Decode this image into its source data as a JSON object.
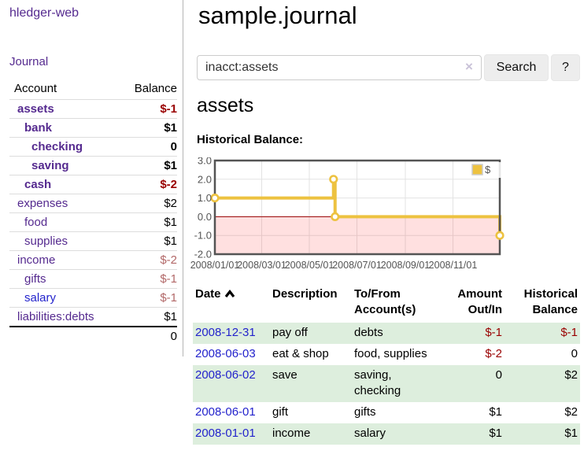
{
  "app": {
    "brand": "hledger-web"
  },
  "colors": {
    "link_purple": "#552a8f",
    "link_blue": "#2323cc",
    "negative": "#990000",
    "negative_faded": "#b26868",
    "row_stripe_green": "#ddeedd",
    "button_bg": "#ededed",
    "chart_line_gold": "#edc240",
    "chart_zero_line": "#990000",
    "chart_negative_fill": "rgba(255,0,0,0.12)"
  },
  "sidebar": {
    "nav": {
      "journal_label": "Journal"
    },
    "accounts_table": {
      "col_account": "Account",
      "col_balance": "Balance",
      "rows": [
        {
          "name": "assets",
          "indent": 1,
          "bold": true,
          "balance": "$-1",
          "balance_class": "neg"
        },
        {
          "name": "bank",
          "indent": 2,
          "bold": true,
          "balance": "$1",
          "balance_class": ""
        },
        {
          "name": "checking",
          "indent": 3,
          "bold": true,
          "balance": "0",
          "balance_class": ""
        },
        {
          "name": "saving",
          "indent": 3,
          "bold": true,
          "balance": "$1",
          "balance_class": ""
        },
        {
          "name": "cash",
          "indent": 2,
          "bold": true,
          "balance": "$-2",
          "balance_class": "neg"
        },
        {
          "name": "expenses",
          "indent": 1,
          "bold": false,
          "balance": "$2",
          "balance_class": ""
        },
        {
          "name": "food",
          "indent": 2,
          "bold": false,
          "balance": "$1",
          "balance_class": ""
        },
        {
          "name": "supplies",
          "indent": 2,
          "bold": false,
          "balance": "$1",
          "balance_class": ""
        },
        {
          "name": "income",
          "indent": 1,
          "bold": false,
          "balance": "$-2",
          "balance_class": "neg-faded"
        },
        {
          "name": "gifts",
          "indent": 2,
          "bold": false,
          "balance": "$-1",
          "balance_class": "neg-faded"
        },
        {
          "name": "salary",
          "indent": 2,
          "bold": false,
          "link_color": "blue",
          "balance": "$-1",
          "balance_class": "neg-faded"
        },
        {
          "name": "liabilities:debts",
          "indent": 1,
          "bold": false,
          "balance": "$1",
          "balance_class": ""
        }
      ],
      "total": "0"
    }
  },
  "header": {
    "title": "sample.journal"
  },
  "search": {
    "query": "inacct:assets",
    "clear_glyph": "×",
    "search_button_label": "Search",
    "help_button_label": "?"
  },
  "account_page": {
    "heading": "assets",
    "chart_label": "Historical Balance:"
  },
  "chart_data": {
    "type": "line",
    "title": "Historical Balance of assets",
    "step": true,
    "series": [
      {
        "name": "$",
        "color": "#edc240",
        "points_x_day_of_2008": [
          0,
          152,
          154,
          365
        ],
        "points_dates": [
          "2008-01-01",
          "2008-06-01",
          "2008-06-03",
          "2008-12-31"
        ],
        "values": [
          1.0,
          2.0,
          0.0,
          -1.0
        ]
      }
    ],
    "xlim": [
      0,
      365
    ],
    "ylim": [
      -2.0,
      3.0
    ],
    "x_ticks": [
      {
        "x": 0,
        "label": "2008/01/01"
      },
      {
        "x": 60,
        "label": "2008/03/01"
      },
      {
        "x": 121,
        "label": "2008/05/01"
      },
      {
        "x": 182,
        "label": "2008/07/01"
      },
      {
        "x": 244,
        "label": "2008/09/01"
      },
      {
        "x": 305,
        "label": "2008/11/01"
      }
    ],
    "y_ticks": [
      {
        "y": 3,
        "label": "3.0"
      },
      {
        "y": 2,
        "label": "2.0"
      },
      {
        "y": 1,
        "label": "1.0"
      },
      {
        "y": 0,
        "label": "0.0"
      },
      {
        "y": -1,
        "label": "-1.0"
      },
      {
        "y": -2,
        "label": "-2.0"
      }
    ],
    "grid": true,
    "legend": {
      "position": "top-right",
      "label": "$",
      "swatch_color": "#edc240"
    },
    "negative_region_shaded": true
  },
  "register_table": {
    "headers": {
      "date": "Date",
      "description": "Description",
      "tofrom": "To/From Account(s)",
      "amount": "Amount Out/In",
      "balance": "Historical Balance"
    },
    "rows": [
      {
        "date": "2008-12-31",
        "description": "pay off",
        "tofrom": "debts",
        "amount": "$-1",
        "amount_neg": true,
        "balance": "$-1",
        "balance_neg": true
      },
      {
        "date": "2008-06-03",
        "description": "eat & shop",
        "tofrom": "food, supplies",
        "amount": "$-2",
        "amount_neg": true,
        "balance": "0",
        "balance_neg": false
      },
      {
        "date": "2008-06-02",
        "description": "save",
        "tofrom": "saving, checking",
        "amount": "0",
        "amount_neg": false,
        "balance": "$2",
        "balance_neg": false
      },
      {
        "date": "2008-06-01",
        "description": "gift",
        "tofrom": "gifts",
        "amount": "$1",
        "amount_neg": false,
        "balance": "$2",
        "balance_neg": false
      },
      {
        "date": "2008-01-01",
        "description": "income",
        "tofrom": "salary",
        "amount": "$1",
        "amount_neg": false,
        "balance": "$1",
        "balance_neg": false
      }
    ]
  }
}
